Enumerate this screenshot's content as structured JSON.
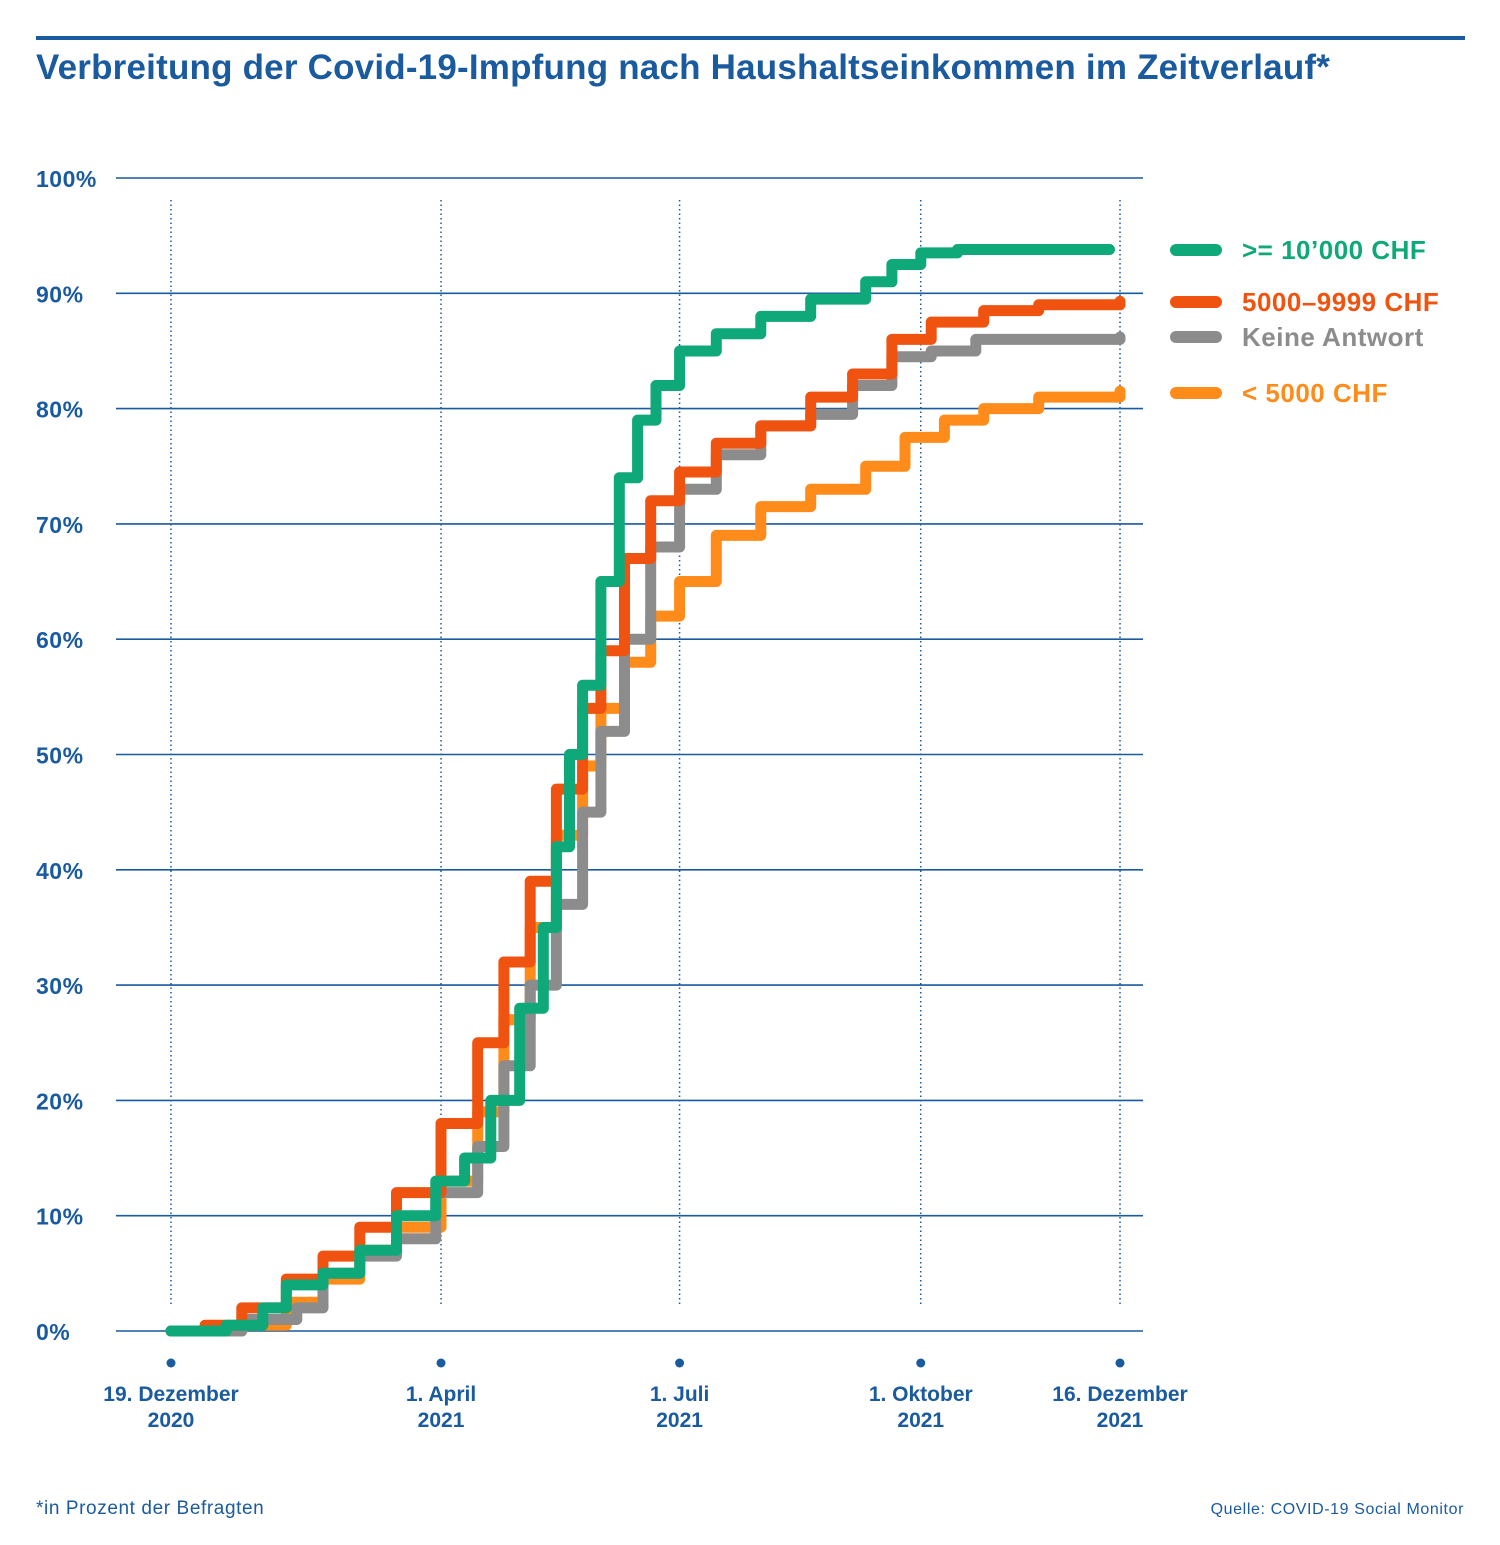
{
  "title": "Verbreitung der Covid-19-Impfung nach Haushaltseinkommen im Zeitverlauf*",
  "footnote": "*in Prozent der Befragten",
  "source": "Quelle: COVID-19 Social Monitor",
  "colors": {
    "accent": "#1a5a9e"
  },
  "chart_data": {
    "type": "line",
    "title": "Verbreitung der Covid-19-Impfung nach Haushaltseinkommen im Zeitverlauf*",
    "xlabel": "",
    "ylabel": "",
    "xlim": [
      "2020-12-19",
      "2021-12-16"
    ],
    "ylim": [
      0,
      100
    ],
    "grid": true,
    "legend": "right",
    "y_ticks": [
      "0%",
      "10%",
      "20%",
      "30%",
      "40%",
      "50%",
      "60%",
      "70%",
      "80%",
      "90%",
      "100%"
    ],
    "x_ticks": [
      {
        "date": "2020-12-19",
        "line1": "19. Dezember",
        "line2": "2020"
      },
      {
        "date": "2021-04-01",
        "line1": "1. April",
        "line2": "2021"
      },
      {
        "date": "2021-07-01",
        "line1": "1. Juli",
        "line2": "2021"
      },
      {
        "date": "2021-10-01",
        "line1": "1. Oktober",
        "line2": "2021"
      },
      {
        "date": "2021-12-16",
        "line1": "16. Dezember",
        "line2": "2021"
      }
    ],
    "series": [
      {
        "name": ">= 10’000 CHF",
        "color": "#0fa878",
        "points": [
          [
            "2020-12-19",
            0
          ],
          [
            "2021-01-09",
            0.5
          ],
          [
            "2021-01-23",
            2
          ],
          [
            "2021-02-01",
            4
          ],
          [
            "2021-02-15",
            5
          ],
          [
            "2021-03-01",
            7
          ],
          [
            "2021-03-15",
            10
          ],
          [
            "2021-03-30",
            13
          ],
          [
            "2021-04-10",
            15
          ],
          [
            "2021-04-20",
            20
          ],
          [
            "2021-05-01",
            28
          ],
          [
            "2021-05-10",
            35
          ],
          [
            "2021-05-15",
            42
          ],
          [
            "2021-05-20",
            50
          ],
          [
            "2021-05-25",
            56
          ],
          [
            "2021-06-01",
            65
          ],
          [
            "2021-06-08",
            74
          ],
          [
            "2021-06-15",
            79
          ],
          [
            "2021-06-22",
            82
          ],
          [
            "2021-07-01",
            85
          ],
          [
            "2021-07-15",
            86.5
          ],
          [
            "2021-08-01",
            88
          ],
          [
            "2021-08-20",
            89.5
          ],
          [
            "2021-09-10",
            91
          ],
          [
            "2021-09-20",
            92.5
          ],
          [
            "2021-10-01",
            93.5
          ],
          [
            "2021-10-15",
            93.8
          ],
          [
            "2021-12-12",
            93.8
          ]
        ]
      },
      {
        "name": "5000–9999 CHF",
        "color": "#f0530f",
        "points": [
          [
            "2020-12-19",
            0
          ],
          [
            "2021-01-01",
            0.5
          ],
          [
            "2021-01-15",
            2
          ],
          [
            "2021-02-01",
            4.5
          ],
          [
            "2021-02-15",
            6.5
          ],
          [
            "2021-03-01",
            9
          ],
          [
            "2021-03-15",
            12
          ],
          [
            "2021-04-01",
            18
          ],
          [
            "2021-04-15",
            25
          ],
          [
            "2021-04-25",
            32
          ],
          [
            "2021-05-05",
            39
          ],
          [
            "2021-05-15",
            47
          ],
          [
            "2021-05-25",
            54
          ],
          [
            "2021-06-01",
            59
          ],
          [
            "2021-06-10",
            67
          ],
          [
            "2021-06-20",
            72
          ],
          [
            "2021-07-01",
            74.5
          ],
          [
            "2021-07-15",
            77
          ],
          [
            "2021-08-01",
            78.5
          ],
          [
            "2021-08-20",
            81
          ],
          [
            "2021-09-05",
            83
          ],
          [
            "2021-09-20",
            86
          ],
          [
            "2021-10-05",
            87.5
          ],
          [
            "2021-10-25",
            88.5
          ],
          [
            "2021-11-15",
            89
          ],
          [
            "2021-12-16",
            89.3
          ]
        ]
      },
      {
        "name": "Keine Antwort",
        "color": "#8c8c8c",
        "points": [
          [
            "2020-12-19",
            0
          ],
          [
            "2021-01-15",
            1
          ],
          [
            "2021-02-05",
            2
          ],
          [
            "2021-02-15",
            5
          ],
          [
            "2021-03-01",
            6.5
          ],
          [
            "2021-03-15",
            8
          ],
          [
            "2021-03-30",
            12
          ],
          [
            "2021-04-15",
            16
          ],
          [
            "2021-04-25",
            23
          ],
          [
            "2021-05-05",
            30
          ],
          [
            "2021-05-15",
            37
          ],
          [
            "2021-05-25",
            45
          ],
          [
            "2021-06-01",
            52
          ],
          [
            "2021-06-10",
            60
          ],
          [
            "2021-06-20",
            68
          ],
          [
            "2021-07-01",
            73
          ],
          [
            "2021-07-15",
            76
          ],
          [
            "2021-08-01",
            78.5
          ],
          [
            "2021-08-20",
            79.5
          ],
          [
            "2021-09-05",
            82
          ],
          [
            "2021-09-20",
            84.5
          ],
          [
            "2021-10-05",
            85
          ],
          [
            "2021-10-20",
            85
          ],
          [
            "2021-10-22",
            86
          ],
          [
            "2021-12-16",
            86.2
          ]
        ]
      },
      {
        "name": "< 5000 CHF",
        "color": "#ff8c1a",
        "points": [
          [
            "2020-12-19",
            0
          ],
          [
            "2021-01-15",
            0.5
          ],
          [
            "2021-02-01",
            2.5
          ],
          [
            "2021-02-15",
            4.5
          ],
          [
            "2021-03-01",
            7
          ],
          [
            "2021-03-15",
            9
          ],
          [
            "2021-04-01",
            13
          ],
          [
            "2021-04-15",
            19
          ],
          [
            "2021-04-25",
            27
          ],
          [
            "2021-05-05",
            35
          ],
          [
            "2021-05-15",
            43
          ],
          [
            "2021-05-25",
            49
          ],
          [
            "2021-06-01",
            54
          ],
          [
            "2021-06-10",
            58
          ],
          [
            "2021-06-20",
            62
          ],
          [
            "2021-07-01",
            65
          ],
          [
            "2021-07-15",
            69
          ],
          [
            "2021-08-01",
            71.5
          ],
          [
            "2021-08-20",
            73
          ],
          [
            "2021-09-10",
            75
          ],
          [
            "2021-09-25",
            77.5
          ],
          [
            "2021-10-10",
            79
          ],
          [
            "2021-10-25",
            80
          ],
          [
            "2021-11-15",
            81
          ],
          [
            "2021-12-16",
            81.5
          ]
        ]
      }
    ]
  }
}
